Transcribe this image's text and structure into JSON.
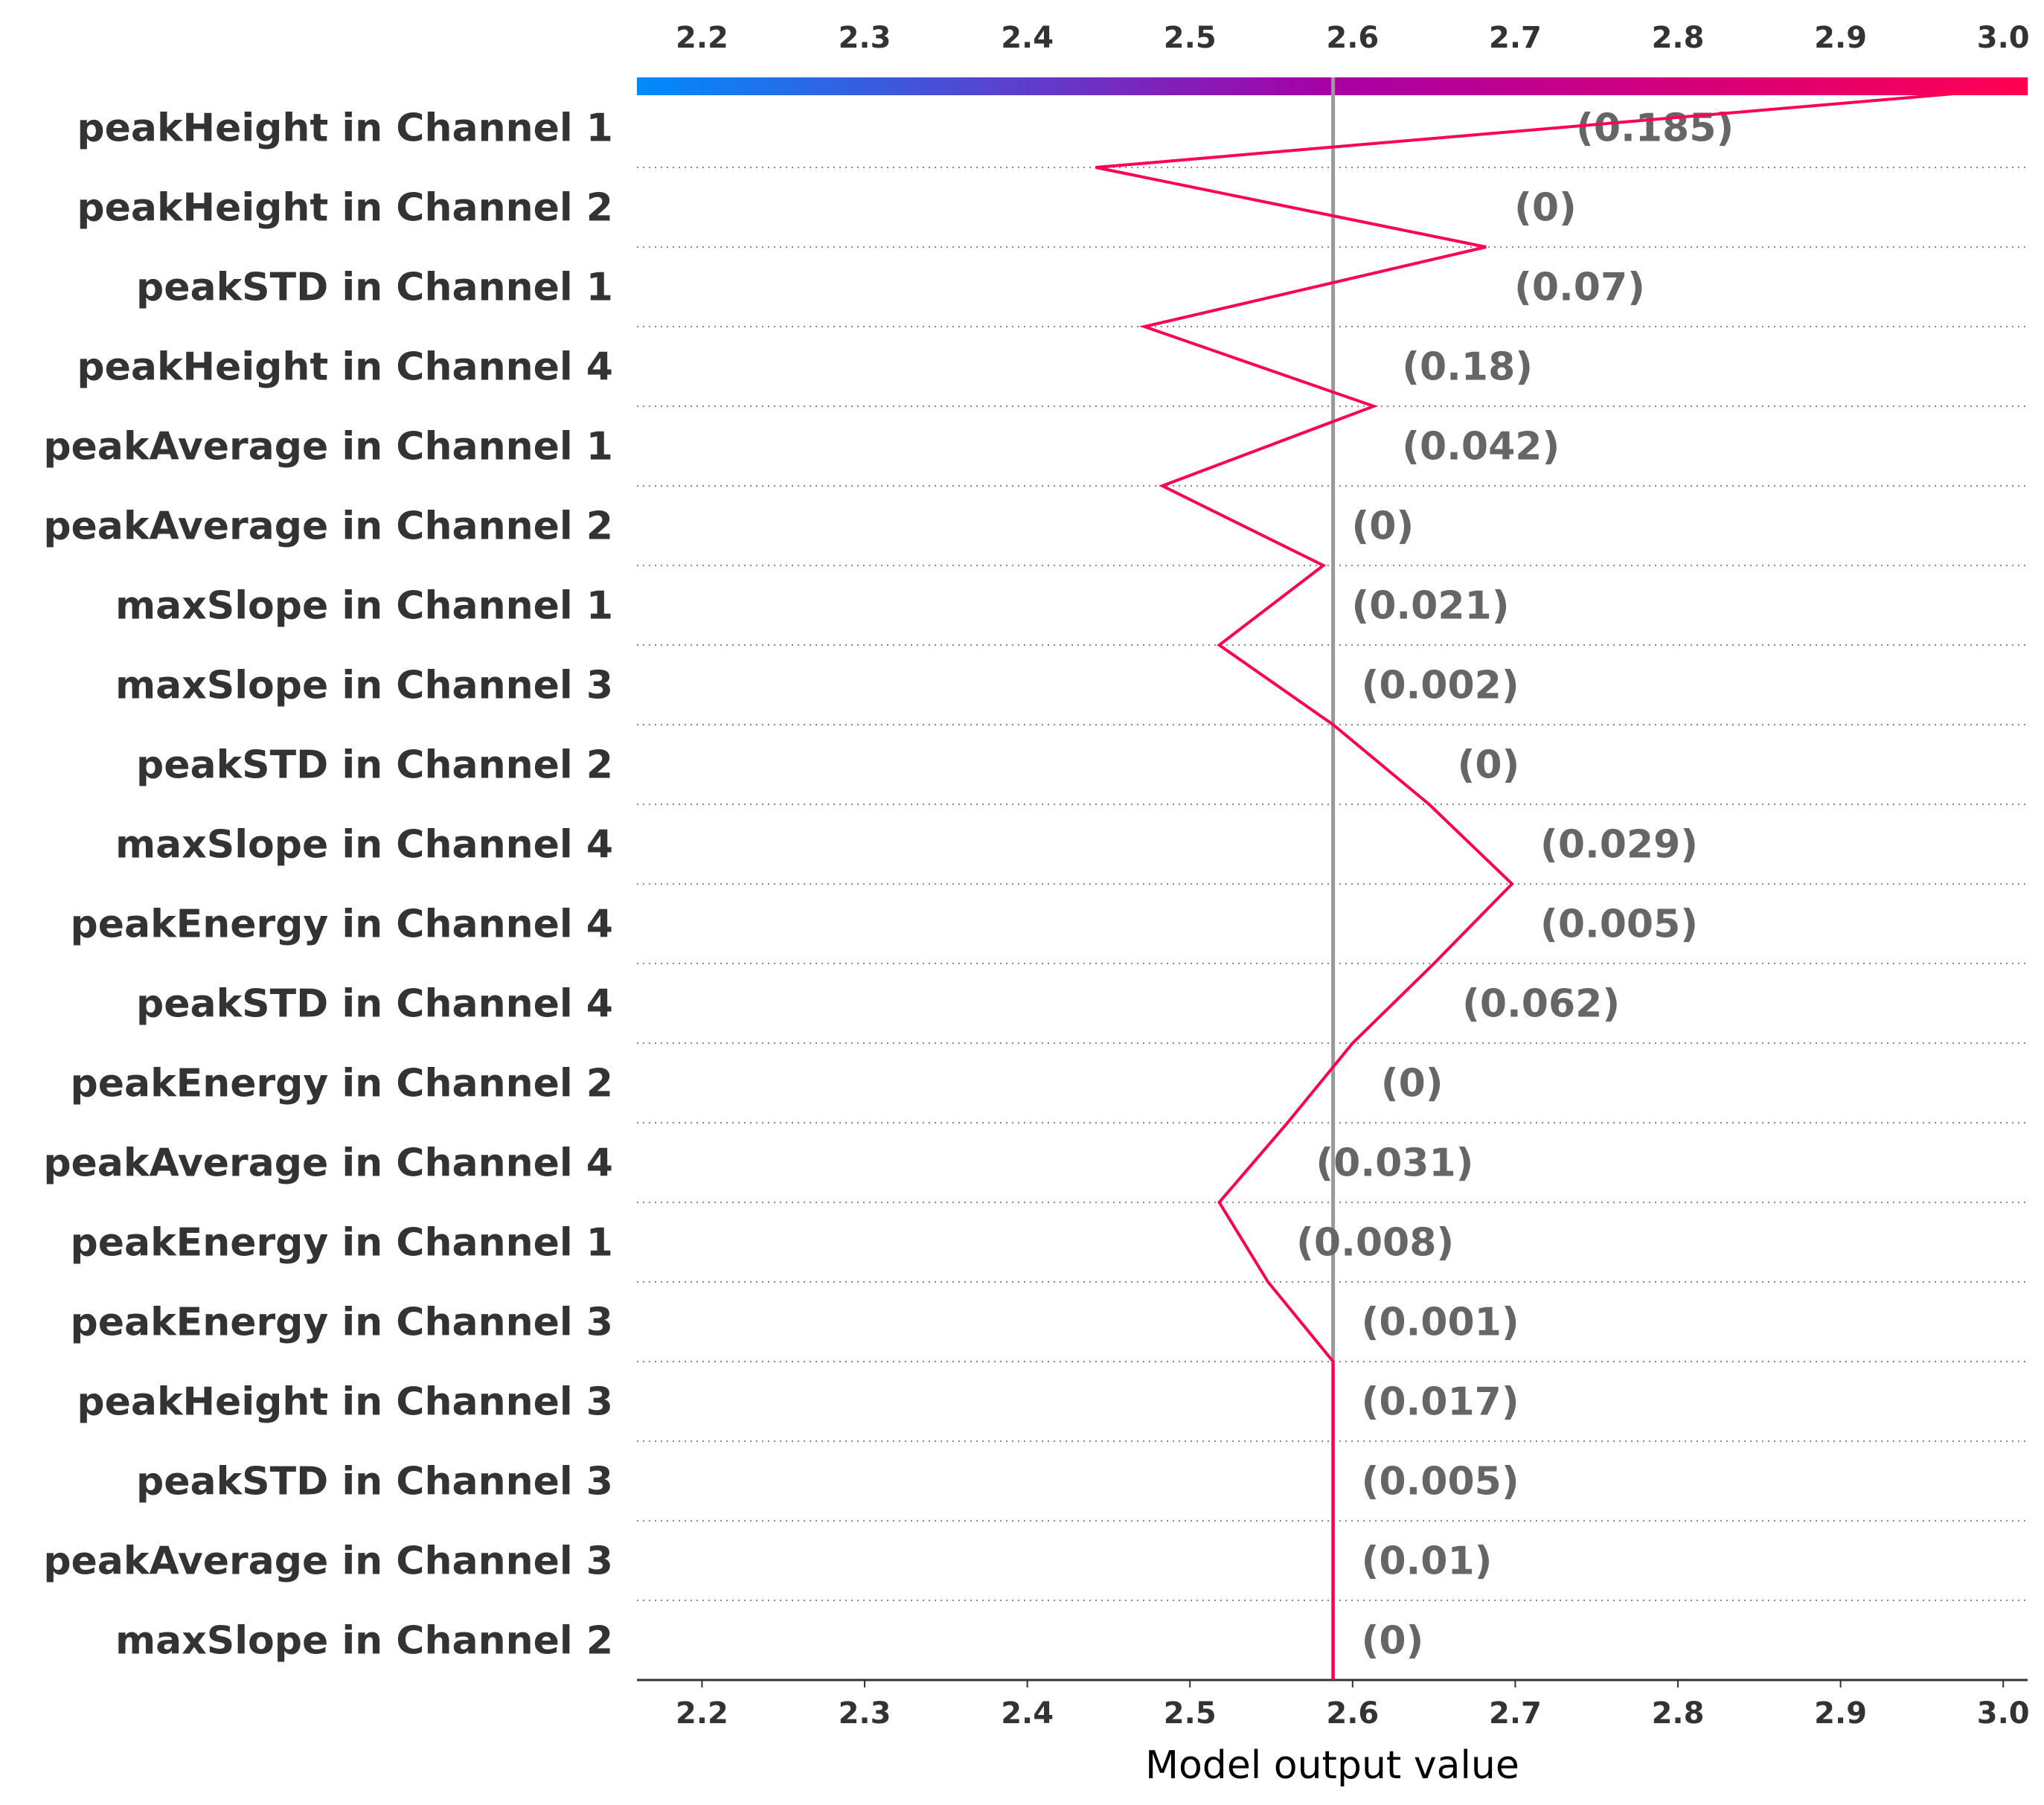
{
  "chart_data": {
    "type": "line",
    "xlabel": "Model output value",
    "xlim": [
      2.16,
      3.015
    ],
    "xticks": [
      "2.2",
      "2.3",
      "2.4",
      "2.5",
      "2.6",
      "2.7",
      "2.8",
      "2.9",
      "3.0"
    ],
    "base_value": 2.588,
    "final_value": 3.012,
    "colorbar": {
      "from": "#008bfb",
      "mid": "#a800a5",
      "to": "#ff0052"
    },
    "line_color": "#ff0052",
    "features": [
      {
        "name": "peakHeight in Channel 1",
        "value_label": "(0.185)",
        "output": 2.442
      },
      {
        "name": "peakHeight in Channel 2",
        "value_label": "(0)",
        "output": 2.682
      },
      {
        "name": "peakSTD in Channel 1",
        "value_label": "(0.07)",
        "output": 2.472
      },
      {
        "name": "peakHeight in Channel 4",
        "value_label": "(0.18)",
        "output": 2.613
      },
      {
        "name": "peakAverage in Channel 1",
        "value_label": "(0.042)",
        "output": 2.483
      },
      {
        "name": "peakAverage in Channel 2",
        "value_label": "(0)",
        "output": 2.582
      },
      {
        "name": "maxSlope in Channel 1",
        "value_label": "(0.021)",
        "output": 2.518
      },
      {
        "name": "maxSlope in Channel 3",
        "value_label": "(0.002)",
        "output": 2.588
      },
      {
        "name": "peakSTD in Channel 2",
        "value_label": "(0)",
        "output": 2.647
      },
      {
        "name": "maxSlope in Channel 4",
        "value_label": "(0.029)",
        "output": 2.698
      },
      {
        "name": "peakEnergy in Channel 4",
        "value_label": "(0.005)",
        "output": 2.65
      },
      {
        "name": "peakSTD in Channel 4",
        "value_label": "(0.062)",
        "output": 2.6
      },
      {
        "name": "peakEnergy in Channel 2",
        "value_label": "(0)",
        "output": 2.56
      },
      {
        "name": "peakAverage in Channel 4",
        "value_label": "(0.031)",
        "output": 2.518
      },
      {
        "name": "peakEnergy in Channel 1",
        "value_label": "(0.008)",
        "output": 2.548
      },
      {
        "name": "peakEnergy in Channel 3",
        "value_label": "(0.001)",
        "output": 2.588
      },
      {
        "name": "peakHeight in Channel 3",
        "value_label": "(0.017)",
        "output": 2.588
      },
      {
        "name": "peakSTD in Channel 3",
        "value_label": "(0.005)",
        "output": 2.588
      },
      {
        "name": "peakAverage in Channel 3",
        "value_label": "(0.01)",
        "output": 2.588
      },
      {
        "name": "maxSlope in Channel 2",
        "value_label": "(0)",
        "output": 2.588
      }
    ]
  }
}
